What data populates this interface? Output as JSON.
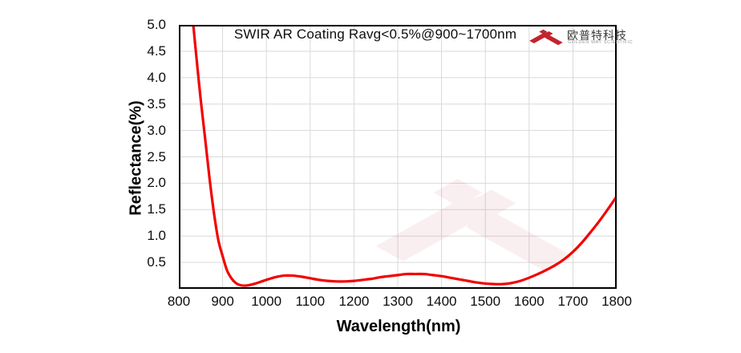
{
  "company": {
    "name_cn": "欧普特科技",
    "name_en": "GOLDEN WAY SCIENTIFIC",
    "logo_color": "#c3242c"
  },
  "chart_data": {
    "type": "line",
    "title": "SWIR AR Coating Ravg<0.5%@900~1700nm",
    "xlabel": "Wavelength(nm)",
    "ylabel": "Reflectance(%)",
    "xlim": [
      800,
      1800
    ],
    "ylim": [
      0,
      5
    ],
    "x_ticks": [
      800,
      900,
      1000,
      1100,
      1200,
      1300,
      1400,
      1500,
      1600,
      1700,
      1800
    ],
    "y_ticks": [
      0.5,
      1.0,
      1.5,
      2.0,
      2.5,
      3.0,
      3.5,
      4.0,
      4.5,
      5.0
    ],
    "y_tick_labels": [
      "0.5",
      "1.0",
      "1.5",
      "2.0",
      "2.5",
      "3.0",
      "3.5",
      "4.0",
      "4.5",
      "5.0"
    ],
    "grid": true,
    "grid_color": "#d9d9d9",
    "axis_color": "#000000",
    "line_color": "#f20000",
    "line_width": 3.2,
    "legend": "none",
    "watermark": "company-logo",
    "watermark_opacity": 0.065,
    "series": [
      {
        "name": "Reflectance(%)",
        "color": "#f20000",
        "points": [
          [
            833,
            5.0
          ],
          [
            840,
            4.4
          ],
          [
            850,
            3.58
          ],
          [
            860,
            2.85
          ],
          [
            870,
            2.1
          ],
          [
            880,
            1.45
          ],
          [
            890,
            0.93
          ],
          [
            900,
            0.62
          ],
          [
            910,
            0.35
          ],
          [
            920,
            0.2
          ],
          [
            930,
            0.11
          ],
          [
            940,
            0.07
          ],
          [
            950,
            0.06
          ],
          [
            960,
            0.07
          ],
          [
            975,
            0.1
          ],
          [
            1000,
            0.17
          ],
          [
            1020,
            0.22
          ],
          [
            1040,
            0.25
          ],
          [
            1060,
            0.25
          ],
          [
            1080,
            0.23
          ],
          [
            1100,
            0.2
          ],
          [
            1120,
            0.17
          ],
          [
            1140,
            0.15
          ],
          [
            1160,
            0.14
          ],
          [
            1180,
            0.14
          ],
          [
            1200,
            0.15
          ],
          [
            1220,
            0.17
          ],
          [
            1240,
            0.19
          ],
          [
            1260,
            0.22
          ],
          [
            1280,
            0.24
          ],
          [
            1300,
            0.26
          ],
          [
            1320,
            0.28
          ],
          [
            1340,
            0.28
          ],
          [
            1360,
            0.28
          ],
          [
            1380,
            0.26
          ],
          [
            1400,
            0.24
          ],
          [
            1420,
            0.21
          ],
          [
            1440,
            0.18
          ],
          [
            1460,
            0.15
          ],
          [
            1480,
            0.12
          ],
          [
            1500,
            0.1
          ],
          [
            1520,
            0.09
          ],
          [
            1540,
            0.09
          ],
          [
            1560,
            0.11
          ],
          [
            1580,
            0.15
          ],
          [
            1600,
            0.21
          ],
          [
            1620,
            0.28
          ],
          [
            1640,
            0.36
          ],
          [
            1660,
            0.45
          ],
          [
            1680,
            0.56
          ],
          [
            1700,
            0.7
          ],
          [
            1720,
            0.87
          ],
          [
            1740,
            1.07
          ],
          [
            1760,
            1.28
          ],
          [
            1780,
            1.51
          ],
          [
            1800,
            1.75
          ]
        ]
      }
    ]
  }
}
